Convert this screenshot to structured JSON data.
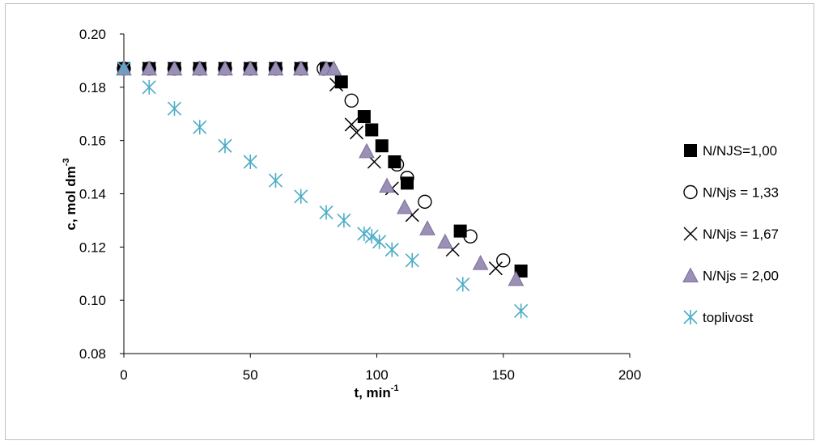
{
  "chart_data": {
    "type": "scatter",
    "xlabel": "t, min",
    "xlabel_sup": "-1",
    "ylabel": "c, mol dm",
    "ylabel_sup": "-3",
    "xlim": [
      0,
      200
    ],
    "ylim": [
      0.08,
      0.2
    ],
    "xticks": [
      "0",
      "50",
      "100",
      "150",
      "200"
    ],
    "yticks": [
      "0.08",
      "0.10",
      "0.12",
      "0.14",
      "0.16",
      "0.18",
      "0.20"
    ],
    "grid": false,
    "legend_position": "right",
    "series": [
      {
        "name": "N/NJS=1,00",
        "marker": "filled-square",
        "color": "#000000",
        "x": [
          0,
          10,
          20,
          30,
          40,
          50,
          60,
          70,
          80,
          86,
          95,
          98,
          102,
          107,
          112,
          133,
          157
        ],
        "y": [
          0.187,
          0.187,
          0.187,
          0.187,
          0.187,
          0.187,
          0.187,
          0.187,
          0.187,
          0.182,
          0.169,
          0.164,
          0.158,
          0.152,
          0.144,
          0.126,
          0.111
        ]
      },
      {
        "name": "N/Njs = 1,33",
        "marker": "open-circle",
        "color": "#000000",
        "x": [
          0,
          10,
          20,
          30,
          40,
          50,
          60,
          70,
          79,
          90,
          108,
          112,
          119,
          137,
          150
        ],
        "y": [
          0.187,
          0.187,
          0.187,
          0.187,
          0.187,
          0.187,
          0.187,
          0.187,
          0.187,
          0.175,
          0.151,
          0.146,
          0.137,
          0.124,
          0.115
        ]
      },
      {
        "name": "N/Njs = 1,67",
        "marker": "cross",
        "color": "#000000",
        "x": [
          0,
          10,
          20,
          30,
          40,
          50,
          60,
          70,
          84,
          90,
          92,
          99,
          106,
          114,
          130,
          147
        ],
        "y": [
          0.187,
          0.187,
          0.187,
          0.187,
          0.187,
          0.187,
          0.187,
          0.187,
          0.181,
          0.166,
          0.163,
          0.152,
          0.142,
          0.132,
          0.119,
          0.112
        ]
      },
      {
        "name": "N/Njs = 2,00",
        "marker": "triangle",
        "color": "#9a8fb5",
        "x": [
          0,
          10,
          20,
          30,
          40,
          50,
          60,
          70,
          80,
          83,
          96,
          104,
          111,
          120,
          127,
          141,
          155
        ],
        "y": [
          0.187,
          0.187,
          0.187,
          0.187,
          0.187,
          0.187,
          0.187,
          0.187,
          0.187,
          0.187,
          0.156,
          0.143,
          0.135,
          0.127,
          0.122,
          0.114,
          0.108
        ]
      },
      {
        "name": "toplivost",
        "marker": "asterisk",
        "color": "#4bacc6",
        "x": [
          0,
          10,
          20,
          30,
          40,
          50,
          60,
          70,
          80,
          87,
          95,
          98,
          101,
          106,
          114,
          134,
          157
        ],
        "y": [
          0.187,
          0.18,
          0.172,
          0.165,
          0.158,
          0.152,
          0.145,
          0.139,
          0.133,
          0.13,
          0.125,
          0.124,
          0.122,
          0.119,
          0.115,
          0.106,
          0.096
        ]
      }
    ]
  }
}
